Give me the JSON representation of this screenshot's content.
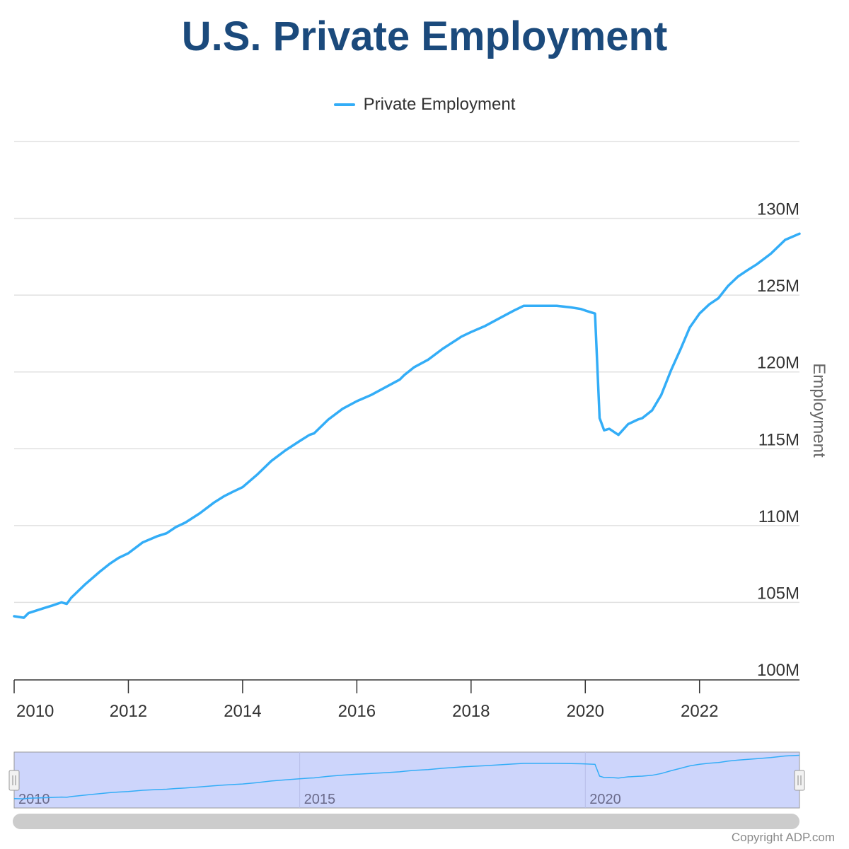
{
  "title": "U.S. Private Employment",
  "legend": {
    "label": "Private Employment",
    "color": "#33adf7"
  },
  "copyright": "Copyright ADP.com",
  "colors": {
    "title": "#1b4a7c",
    "line": "#33adf7",
    "navigator_fill": "#cdd5fb",
    "grid": "#e0e0e0"
  },
  "chart_data": {
    "type": "line",
    "title": "U.S. Private Employment",
    "xlabel": "",
    "ylabel": "Employment",
    "ylim": [
      100,
      135
    ],
    "xlim": [
      2010.0,
      2023.75
    ],
    "y_ticks": [
      100,
      105,
      110,
      115,
      120,
      125,
      130
    ],
    "y_tick_labels": [
      "100M",
      "105M",
      "110M",
      "115M",
      "120M",
      "125M",
      "130M"
    ],
    "x_ticks": [
      2010,
      2012,
      2014,
      2016,
      2018,
      2020,
      2022
    ],
    "x_tick_labels": [
      "2010",
      "2012",
      "2014",
      "2016",
      "2018",
      "2020",
      "2022"
    ],
    "grid": true,
    "legend_position": "top-center",
    "series": [
      {
        "name": "Private Employment",
        "color": "#33adf7",
        "x": [
          2010.0,
          2010.17,
          2010.25,
          2010.5,
          2010.67,
          2010.83,
          2010.92,
          2011.0,
          2011.25,
          2011.5,
          2011.67,
          2011.83,
          2012.0,
          2012.25,
          2012.5,
          2012.67,
          2012.83,
          2013.0,
          2013.25,
          2013.5,
          2013.67,
          2013.83,
          2014.0,
          2014.25,
          2014.5,
          2014.75,
          2015.0,
          2015.17,
          2015.25,
          2015.5,
          2015.75,
          2016.0,
          2016.25,
          2016.5,
          2016.75,
          2016.83,
          2017.0,
          2017.25,
          2017.5,
          2017.75,
          2017.83,
          2018.0,
          2018.25,
          2018.5,
          2018.75,
          2018.92,
          2019.0,
          2019.25,
          2019.5,
          2019.75,
          2019.92,
          2020.0,
          2020.17,
          2020.25,
          2020.33,
          2020.42,
          2020.58,
          2020.75,
          2020.92,
          2021.0,
          2021.17,
          2021.33,
          2021.5,
          2021.67,
          2021.83,
          2022.0,
          2022.17,
          2022.33,
          2022.5,
          2022.67,
          2022.83,
          2023.0,
          2023.25,
          2023.5,
          2023.75
        ],
        "values": [
          104.1,
          104.0,
          104.3,
          104.6,
          104.8,
          105.0,
          104.9,
          105.3,
          106.2,
          107.0,
          107.5,
          107.9,
          108.2,
          108.9,
          109.3,
          109.5,
          109.9,
          110.2,
          110.8,
          111.5,
          111.9,
          112.2,
          112.5,
          113.3,
          114.2,
          114.9,
          115.5,
          115.9,
          116.0,
          116.9,
          117.6,
          118.1,
          118.5,
          119.0,
          119.5,
          119.8,
          120.3,
          120.8,
          121.5,
          122.1,
          122.3,
          122.6,
          123.0,
          123.5,
          124.0,
          124.3,
          124.3,
          124.3,
          124.3,
          124.2,
          124.1,
          124.0,
          123.8,
          117.0,
          116.2,
          116.3,
          115.9,
          116.6,
          116.9,
          117.0,
          117.5,
          118.5,
          120.1,
          121.5,
          122.9,
          123.8,
          124.4,
          124.8,
          125.6,
          126.2,
          126.6,
          127.0,
          127.7,
          128.6,
          129.0
        ]
      }
    ],
    "navigator": {
      "x_tick_labels": [
        "2010",
        "2015",
        "2020"
      ],
      "x_ticks": [
        2010,
        2015,
        2020
      ]
    }
  }
}
